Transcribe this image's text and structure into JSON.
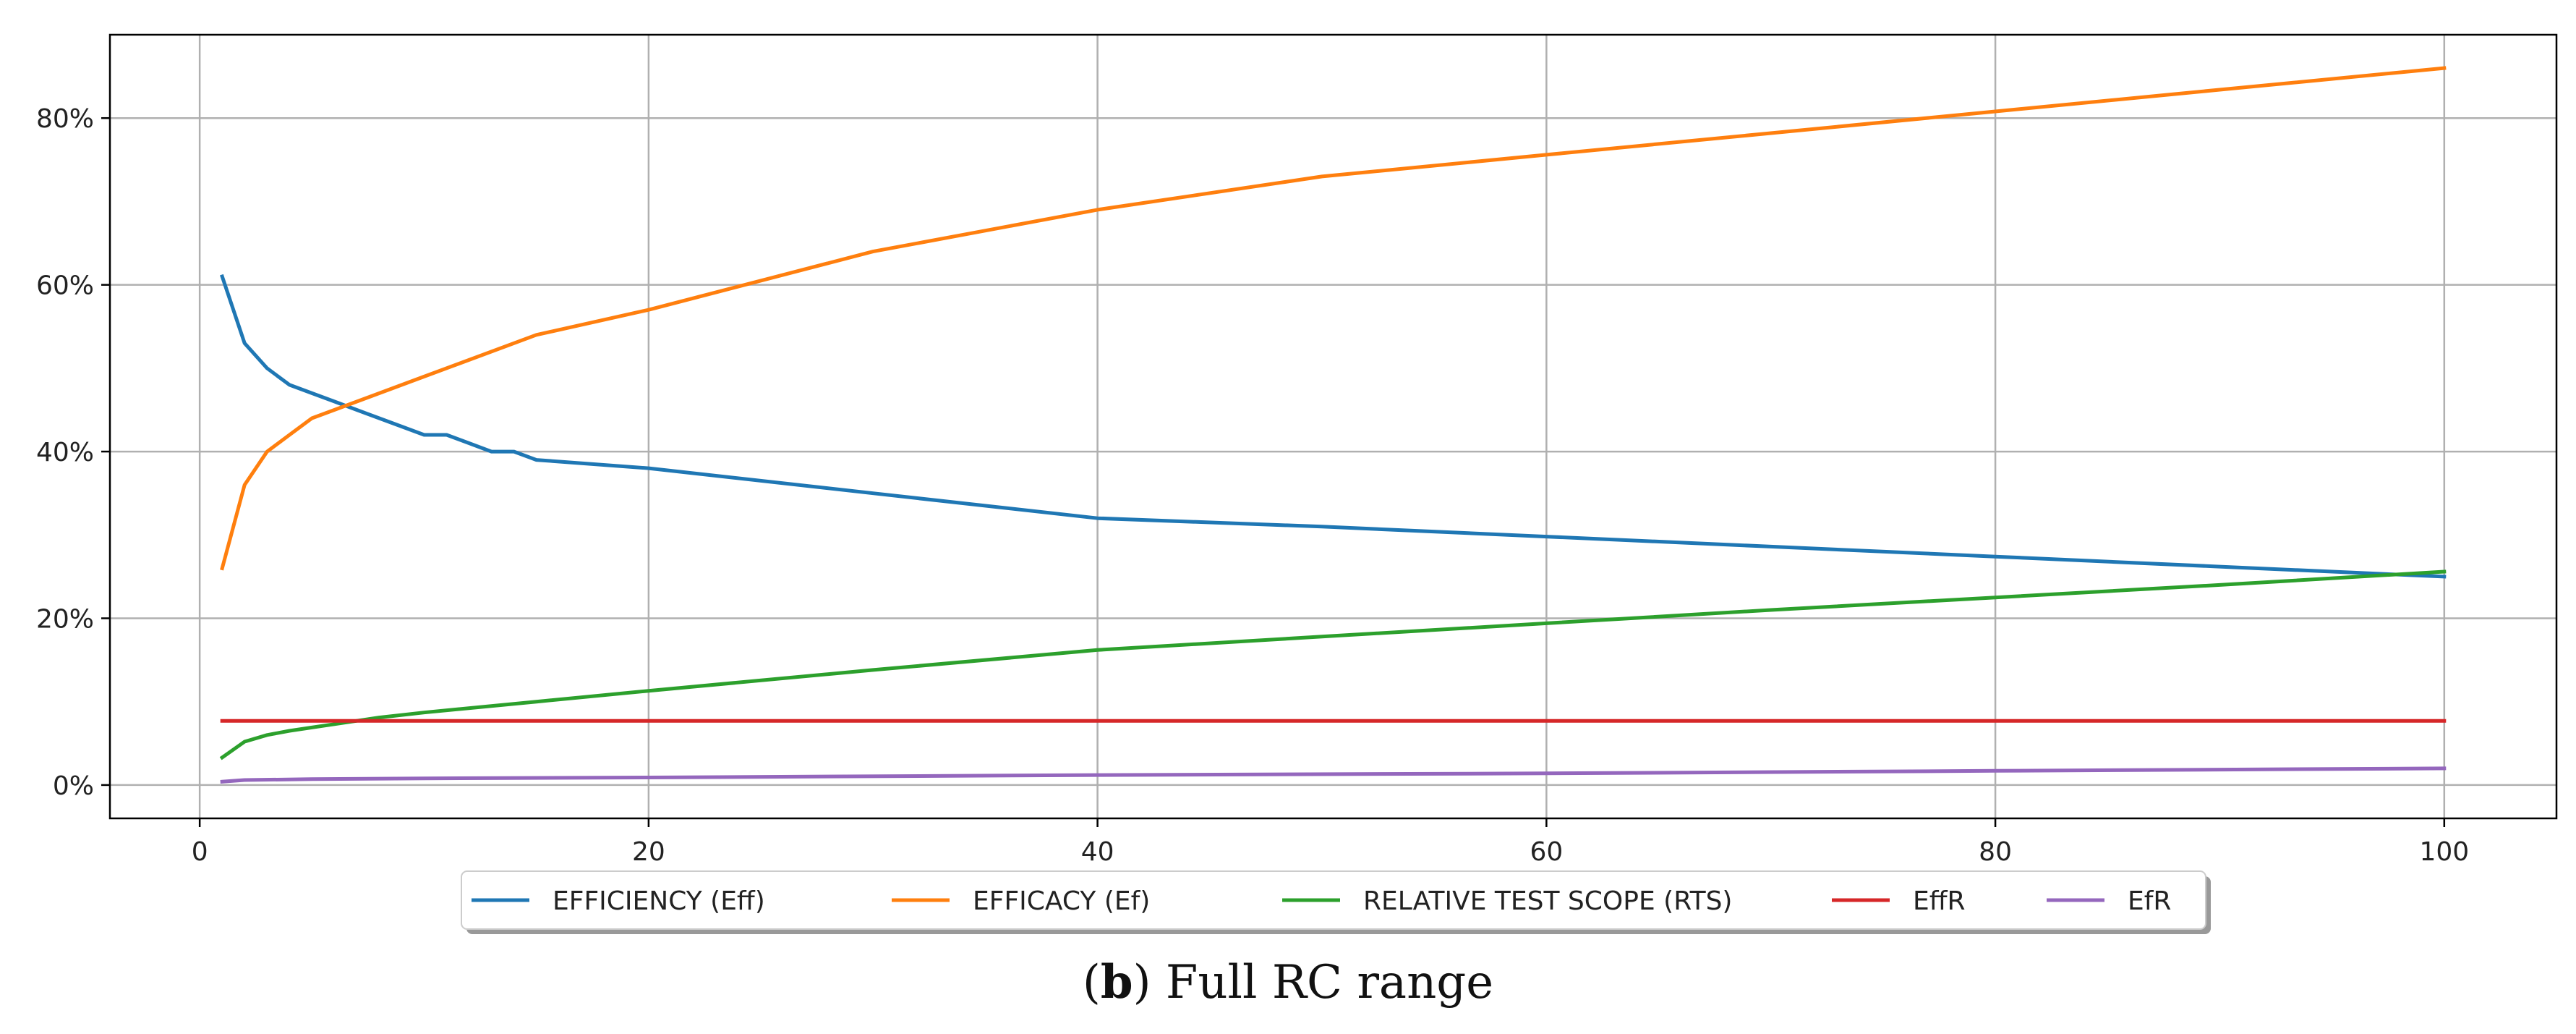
{
  "chart_data": {
    "type": "line",
    "title": "",
    "xlabel": "",
    "ylabel": "",
    "xlim": [
      -4,
      105
    ],
    "ylim": [
      -4,
      90
    ],
    "x_ticks": [
      0,
      20,
      40,
      60,
      80,
      100
    ],
    "x_tick_labels": [
      "0",
      "20",
      "40",
      "60",
      "80",
      "100"
    ],
    "y_ticks": [
      0,
      20,
      40,
      60,
      80
    ],
    "y_tick_labels": [
      "0%",
      "20%",
      "40%",
      "60%",
      "80%"
    ],
    "grid": true,
    "legend_position": "bottom-center",
    "series": [
      {
        "name": "EFFICIENCY (Eff)",
        "color": "#1f77b4",
        "x": [
          1,
          2,
          3,
          4,
          5,
          6,
          7,
          8,
          9,
          10,
          11,
          12,
          13,
          14,
          15,
          20,
          30,
          40,
          50,
          60,
          70,
          80,
          90,
          100
        ],
        "y": [
          61,
          53,
          50,
          48,
          47,
          46,
          45,
          44,
          43,
          42,
          42,
          41,
          40,
          40,
          39,
          38,
          35,
          32,
          31,
          29.8,
          28.6,
          27.4,
          26.2,
          25
        ]
      },
      {
        "name": "EFFICACY (Ef)",
        "color": "#ff7f0e",
        "x": [
          1,
          2,
          3,
          4,
          5,
          10,
          15,
          20,
          30,
          40,
          50,
          60,
          70,
          80,
          90,
          100
        ],
        "y": [
          26,
          36,
          40,
          42,
          44,
          49,
          54,
          57,
          64,
          69,
          73,
          75.6,
          78.2,
          80.8,
          83.4,
          86
        ]
      },
      {
        "name": "RELATIVE TEST SCOPE (RTS)",
        "color": "#2ca02c",
        "x": [
          1,
          2,
          3,
          4,
          5,
          6,
          8,
          10,
          15,
          20,
          30,
          40,
          50,
          60,
          70,
          80,
          90,
          100
        ],
        "y": [
          3.3,
          5.2,
          6,
          6.5,
          6.9,
          7.3,
          8.1,
          8.7,
          10,
          11.3,
          13.8,
          16.2,
          17.8,
          19.4,
          21,
          22.5,
          24,
          25.6
        ]
      },
      {
        "name": "EffR",
        "color": "#d62728",
        "x": [
          1,
          100
        ],
        "y": [
          7.7,
          7.7
        ]
      },
      {
        "name": "EfR",
        "color": "#9467bd",
        "x": [
          1,
          2,
          5,
          10,
          20,
          40,
          60,
          80,
          100
        ],
        "y": [
          0.4,
          0.6,
          0.7,
          0.8,
          0.9,
          1.2,
          1.4,
          1.7,
          2
        ]
      }
    ]
  },
  "caption": {
    "panel": "b",
    "text": "Full RC range"
  }
}
